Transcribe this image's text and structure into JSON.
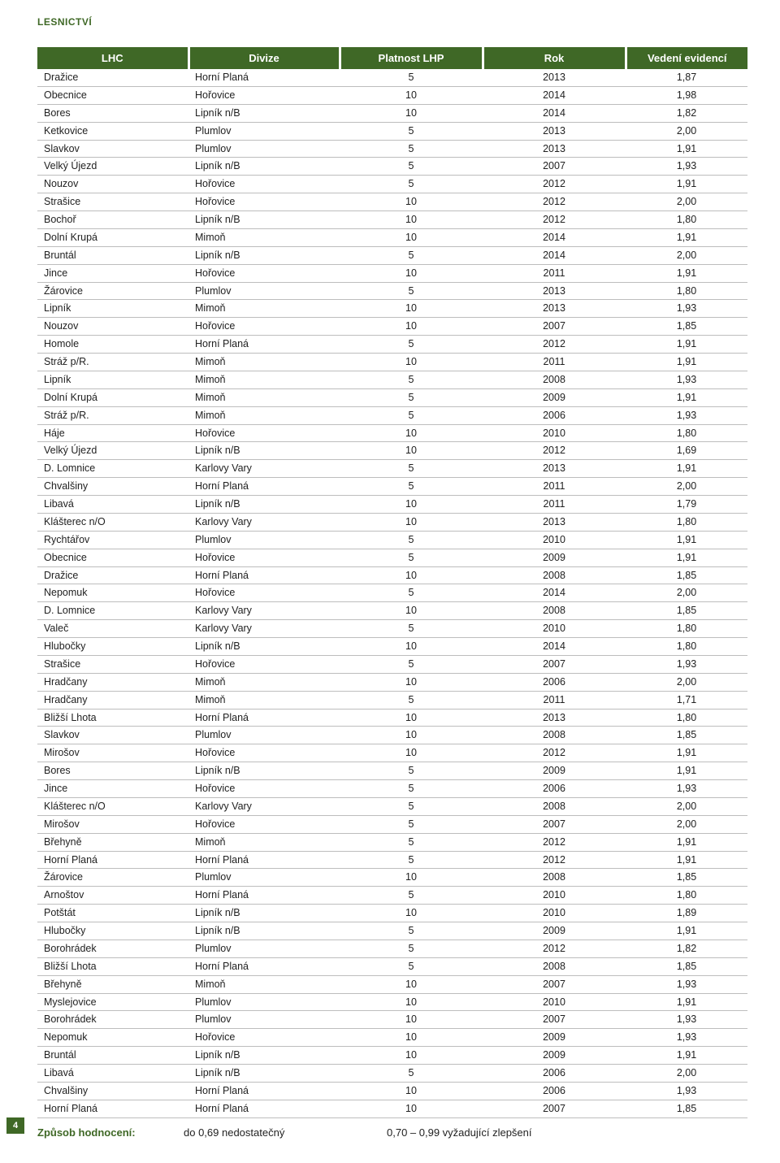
{
  "section_tag": "LESNICTVÍ",
  "page_number": "4",
  "table": {
    "headers": [
      "LHC",
      "Divize",
      "Platnost LHP",
      "Rok",
      "Vedení evidencí"
    ],
    "rows": [
      [
        "Dražice",
        "Horní Planá",
        "5",
        "2013",
        "1,87"
      ],
      [
        "Obecnice",
        "Hořovice",
        "10",
        "2014",
        "1,98"
      ],
      [
        "Bores",
        "Lipník n/B",
        "10",
        "2014",
        "1,82"
      ],
      [
        "Ketkovice",
        "Plumlov",
        "5",
        "2013",
        "2,00"
      ],
      [
        "Slavkov",
        "Plumlov",
        "5",
        "2013",
        "1,91"
      ],
      [
        "Velký Újezd",
        "Lipník n/B",
        "5",
        "2007",
        "1,93"
      ],
      [
        "Nouzov",
        "Hořovice",
        "5",
        "2012",
        "1,91"
      ],
      [
        "Strašice",
        "Hořovice",
        "10",
        "2012",
        "2,00"
      ],
      [
        "Bochoř",
        "Lipník n/B",
        "10",
        "2012",
        "1,80"
      ],
      [
        "Dolní Krupá",
        "Mimoň",
        "10",
        "2014",
        "1,91"
      ],
      [
        "Bruntál",
        "Lipník n/B",
        "5",
        "2014",
        "2,00"
      ],
      [
        "Jince",
        "Hořovice",
        "10",
        "2011",
        "1,91"
      ],
      [
        "Žárovice",
        "Plumlov",
        "5",
        "2013",
        "1,80"
      ],
      [
        "Lipník",
        "Mimoň",
        "10",
        "2013",
        "1,93"
      ],
      [
        "Nouzov",
        "Hořovice",
        "10",
        "2007",
        "1,85"
      ],
      [
        "Homole",
        "Horní Planá",
        "5",
        "2012",
        "1,91"
      ],
      [
        "Stráž p/R.",
        "Mimoň",
        "10",
        "2011",
        "1,91"
      ],
      [
        "Lipník",
        "Mimoň",
        "5",
        "2008",
        "1,93"
      ],
      [
        "Dolní Krupá",
        "Mimoň",
        "5",
        "2009",
        "1,91"
      ],
      [
        "Stráž p/R.",
        "Mimoň",
        "5",
        "2006",
        "1,93"
      ],
      [
        "Háje",
        "Hořovice",
        "10",
        "2010",
        "1,80"
      ],
      [
        "Velký Újezd",
        "Lipník n/B",
        "10",
        "2012",
        "1,69"
      ],
      [
        "D. Lomnice",
        "Karlovy Vary",
        "5",
        "2013",
        "1,91"
      ],
      [
        "Chvalšiny",
        "Horní Planá",
        "5",
        "2011",
        "2,00"
      ],
      [
        "Libavá",
        "Lipník n/B",
        "10",
        "2011",
        "1,79"
      ],
      [
        "Klášterec n/O",
        "Karlovy Vary",
        "10",
        "2013",
        "1,80"
      ],
      [
        "Rychtářov",
        "Plumlov",
        "5",
        "2010",
        "1,91"
      ],
      [
        "Obecnice",
        "Hořovice",
        "5",
        "2009",
        "1,91"
      ],
      [
        "Dražice",
        "Horní Planá",
        "10",
        "2008",
        "1,85"
      ],
      [
        "Nepomuk",
        "Hořovice",
        "5",
        "2014",
        "2,00"
      ],
      [
        "D. Lomnice",
        "Karlovy Vary",
        "10",
        "2008",
        "1,85"
      ],
      [
        "Valeč",
        "Karlovy Vary",
        "5",
        "2010",
        "1,80"
      ],
      [
        "Hlubočky",
        "Lipník n/B",
        "10",
        "2014",
        "1,80"
      ],
      [
        "Strašice",
        "Hořovice",
        "5",
        "2007",
        "1,93"
      ],
      [
        "Hradčany",
        "Mimoň",
        "10",
        "2006",
        "2,00"
      ],
      [
        "Hradčany",
        "Mimoň",
        "5",
        "2011",
        "1,71"
      ],
      [
        "Bližší Lhota",
        "Horní Planá",
        "10",
        "2013",
        "1,80"
      ],
      [
        "Slavkov",
        "Plumlov",
        "10",
        "2008",
        "1,85"
      ],
      [
        "Mirošov",
        "Hořovice",
        "10",
        "2012",
        "1,91"
      ],
      [
        "Bores",
        "Lipník n/B",
        "5",
        "2009",
        "1,91"
      ],
      [
        "Jince",
        "Hořovice",
        "5",
        "2006",
        "1,93"
      ],
      [
        "Klášterec n/O",
        "Karlovy Vary",
        "5",
        "2008",
        "2,00"
      ],
      [
        "Mirošov",
        "Hořovice",
        "5",
        "2007",
        "2,00"
      ],
      [
        "Břehyně",
        "Mimoň",
        "5",
        "2012",
        "1,91"
      ],
      [
        "Horní Planá",
        "Horní Planá",
        "5",
        "2012",
        "1,91"
      ],
      [
        "Žárovice",
        "Plumlov",
        "10",
        "2008",
        "1,85"
      ],
      [
        "Arnoštov",
        "Horní Planá",
        "5",
        "2010",
        "1,80"
      ],
      [
        "Potštát",
        "Lipník n/B",
        "10",
        "2010",
        "1,89"
      ],
      [
        "Hlubočky",
        "Lipník n/B",
        "5",
        "2009",
        "1,91"
      ],
      [
        "Borohrádek",
        "Plumlov",
        "5",
        "2012",
        "1,82"
      ],
      [
        "Bližší Lhota",
        "Horní Planá",
        "5",
        "2008",
        "1,85"
      ],
      [
        "Břehyně",
        "Mimoň",
        "10",
        "2007",
        "1,93"
      ],
      [
        "Myslejovice",
        "Plumlov",
        "10",
        "2010",
        "1,91"
      ],
      [
        "Borohrádek",
        "Plumlov",
        "10",
        "2007",
        "1,93"
      ],
      [
        "Nepomuk",
        "Hořovice",
        "10",
        "2009",
        "1,93"
      ],
      [
        "Bruntál",
        "Lipník n/B",
        "10",
        "2009",
        "1,91"
      ],
      [
        "Libavá",
        "Lipník n/B",
        "5",
        "2006",
        "2,00"
      ],
      [
        "Chvalšiny",
        "Horní Planá",
        "10",
        "2006",
        "1,93"
      ],
      [
        "Horní Planá",
        "Horní Planá",
        "10",
        "2007",
        "1,85"
      ]
    ]
  },
  "footer": {
    "label": "Způsob hodnocení:",
    "val1": "do 0,69 nedostatečný",
    "val2": "0,70 – 0,99 vyžadující zlepšení"
  },
  "colors": {
    "accent": "#3f6826",
    "row_border": "#bdbdbd",
    "text": "#222222",
    "bg": "#ffffff"
  },
  "typography": {
    "body_fontsize_pt": 9.5,
    "header_fontsize_pt": 10,
    "section_tag_fontsize_pt": 9
  }
}
